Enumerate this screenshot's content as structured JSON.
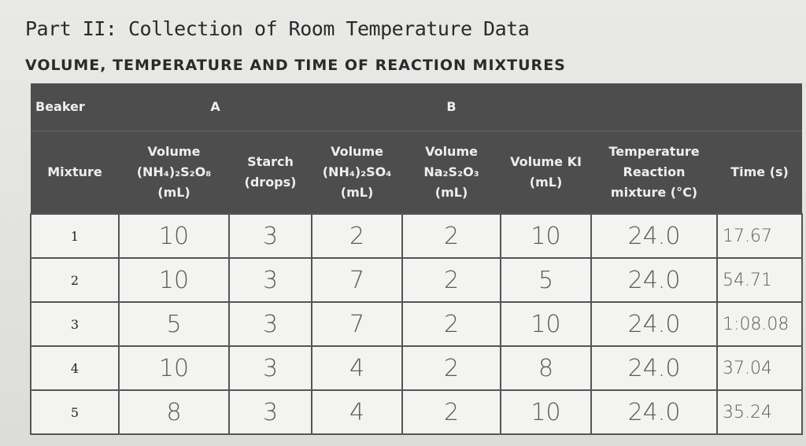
{
  "header": {
    "title": "Part II: Collection of Room Temperature Data",
    "subtitle": "VOLUME, TEMPERATURE AND TIME OF REACTION MIXTURES"
  },
  "table": {
    "group_row": [
      "Beaker",
      "A",
      "B"
    ],
    "columns": [
      "Mixture",
      "Volume (NH₄)₂S₂O₈ (mL)",
      "Starch (drops)",
      "Volume (NH₄)₂SO₄ (mL)",
      "Volume Na₂S₂O₃ (mL)",
      "Volume KI (mL)",
      "Temperature Reaction mixture (°C)",
      "Time (s)"
    ],
    "rows": [
      [
        "1",
        "10",
        "3",
        "2",
        "2",
        "10",
        "24.0",
        "17.67"
      ],
      [
        "2",
        "10",
        "3",
        "7",
        "2",
        "5",
        "24.0",
        "54.71"
      ],
      [
        "3",
        "5",
        "3",
        "7",
        "2",
        "10",
        "24.0",
        "1:08.08"
      ],
      [
        "4",
        "10",
        "3",
        "4",
        "2",
        "8",
        "24.0",
        "37.04"
      ],
      [
        "5",
        "8",
        "3",
        "4",
        "2",
        "10",
        "24.0",
        "35.24"
      ]
    ]
  }
}
